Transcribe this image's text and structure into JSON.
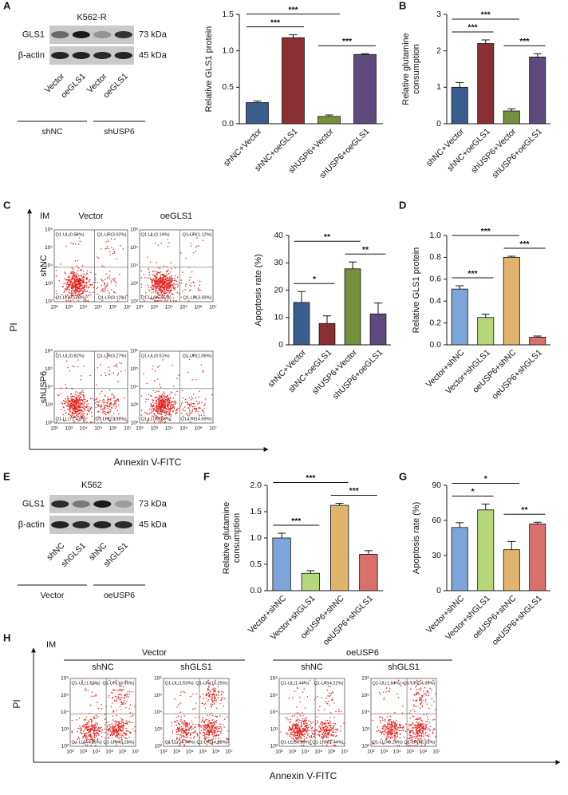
{
  "panels": [
    "A",
    "B",
    "C",
    "D",
    "E",
    "F",
    "G",
    "H"
  ],
  "blots": [
    {
      "title": "K562-R",
      "rows": [
        {
          "protein": "GLS1",
          "size": "73 kDa"
        },
        {
          "protein": "β-actin",
          "size": "45 kDa"
        }
      ],
      "lanes": [
        "Vector",
        "oeGLS1",
        "Vector",
        "oeGLS1"
      ],
      "groups": [
        "shNC",
        "shUSP6"
      ]
    },
    {
      "title": "K562",
      "rows": [
        {
          "protein": "GLS1",
          "size": "73 kDa"
        },
        {
          "protein": "β-actin",
          "size": "45 kDa"
        }
      ],
      "lanes": [
        "shNC",
        "shGLS1",
        "shNC",
        "shGLS1"
      ],
      "groups": [
        "Vector",
        "oeUSP6"
      ]
    }
  ],
  "chart_data": [
    {
      "type": "bar",
      "y_label": "Relative GLS1 protein",
      "categories": [
        "shNC+Vector",
        "shNC+oeGLS1",
        "shUSP6+Vector",
        "shUSP6+oeGLS1"
      ],
      "values": [
        0.29,
        1.18,
        0.1,
        0.95
      ],
      "errors": [
        0.02,
        0.04,
        0.02,
        0.01
      ],
      "colors": [
        "#3a5d8c",
        "#8c2f33",
        "#76913d",
        "#5e4a7d"
      ],
      "ylim": [
        0,
        1.5
      ],
      "yticks": [
        {
          "value": 0,
          "label": "0.0"
        },
        0.5,
        {
          "value": 1,
          "label": "1.0"
        },
        1.5
      ],
      "significance": [
        {
          "groups": [
            0,
            1
          ],
          "label": "***"
        },
        {
          "groups": [
            2,
            3
          ],
          "label": "***"
        },
        {
          "groups": [
            0,
            2
          ],
          "label": "***"
        }
      ]
    },
    {
      "type": "bar",
      "y_label": [
        "Relative glutamine",
        "consumption"
      ],
      "categories": [
        "shNC+Vector",
        "shNC+oeGLS1",
        "shUSP6+Vector",
        "shUSP6+oeGLS1"
      ],
      "values": [
        1.0,
        2.2,
        0.35,
        1.83
      ],
      "errors": [
        0.13,
        0.1,
        0.06,
        0.09
      ],
      "colors": [
        "#3a5d8c",
        "#8c2f33",
        "#76913d",
        "#5e4a7d"
      ],
      "ylim": [
        0,
        3
      ],
      "yticks": [
        0,
        1,
        2,
        3
      ],
      "significance": [
        {
          "groups": [
            0,
            1
          ],
          "label": "***"
        },
        {
          "groups": [
            2,
            3
          ],
          "label": "***"
        },
        {
          "groups": [
            0,
            2
          ],
          "label": "***"
        }
      ]
    },
    {
      "type": "bar",
      "y_label": "Apoptosis rate (%)",
      "categories": [
        "shNC+Vector",
        "shNC+oeGLS1",
        "shUSP6+Vector",
        "shUSP6+oeGLS1"
      ],
      "values": [
        15.5,
        7.8,
        27.8,
        11.3
      ],
      "errors": [
        4,
        2.8,
        2.5,
        4
      ],
      "colors": [
        "#3a5d8c",
        "#8c2f33",
        "#76913d",
        "#5e4a7d"
      ],
      "ylim": [
        0,
        40
      ],
      "yticks": [
        0,
        10,
        20,
        30,
        40
      ],
      "significance": [
        {
          "groups": [
            0,
            1
          ],
          "label": "*"
        },
        {
          "groups": [
            2,
            3
          ],
          "label": "**"
        },
        {
          "groups": [
            0,
            2
          ],
          "label": "**"
        }
      ]
    },
    {
      "type": "bar",
      "y_label": "Relative GLS1 protein",
      "categories": [
        "Vector+shNC",
        "Vector+shGLS1",
        "oeUSP6+shNC",
        "oeUSP6+shGLS1"
      ],
      "values": [
        0.51,
        0.25,
        0.8,
        0.07
      ],
      "errors": [
        0.03,
        0.03,
        0.01,
        0.01
      ],
      "colors": [
        "#7ea5d9",
        "#b6d67a",
        "#e0b46c",
        "#d9706c"
      ],
      "ylim": [
        0,
        1
      ],
      "yticks": [
        {
          "value": 0,
          "label": "0.0"
        },
        0.2,
        0.4,
        0.6,
        0.8,
        {
          "value": 1,
          "label": "1.0"
        }
      ],
      "significance": [
        {
          "groups": [
            0,
            1
          ],
          "label": "***"
        },
        {
          "groups": [
            2,
            3
          ],
          "label": "***"
        },
        {
          "groups": [
            0,
            2
          ],
          "label": "***"
        }
      ]
    },
    {
      "type": "bar",
      "y_label": [
        "Relative glutamine",
        "consumption"
      ],
      "categories": [
        "Vector+shNC",
        "Vector+shGLS1",
        "oeUSP6+shNC",
        "oeUSP6+shGLS1"
      ],
      "values": [
        1.0,
        0.33,
        1.62,
        0.69
      ],
      "errors": [
        0.09,
        0.05,
        0.04,
        0.07
      ],
      "colors": [
        "#7ea5d9",
        "#b6d67a",
        "#e0b46c",
        "#d9706c"
      ],
      "ylim": [
        0,
        2
      ],
      "yticks": [
        {
          "value": 0,
          "label": "0.0"
        },
        0.5,
        {
          "value": 1,
          "label": "1.0"
        },
        1.5,
        {
          "value": 2,
          "label": "2.0"
        }
      ],
      "significance": [
        {
          "groups": [
            0,
            1
          ],
          "label": "***"
        },
        {
          "groups": [
            2,
            3
          ],
          "label": "***"
        },
        {
          "groups": [
            0,
            2
          ],
          "label": "***"
        }
      ]
    },
    {
      "type": "bar",
      "y_label": "Apoptosis rate (%)",
      "categories": [
        "Vector+shNC",
        "Vector+shGLS1",
        "oeUSP6+shNC",
        "oeUSP6+shGLS1"
      ],
      "values": [
        54,
        69,
        35,
        57
      ],
      "errors": [
        4,
        5,
        7,
        1.5
      ],
      "colors": [
        "#7ea5d9",
        "#b6d67a",
        "#e0b46c",
        "#d9706c"
      ],
      "ylim": [
        0,
        90
      ],
      "yticks": [
        0,
        30,
        60,
        90
      ],
      "significance": [
        {
          "groups": [
            0,
            1
          ],
          "label": "*"
        },
        {
          "groups": [
            2,
            3
          ],
          "label": "**"
        },
        {
          "groups": [
            0,
            2
          ],
          "label": "*"
        }
      ]
    }
  ],
  "flow": [
    {
      "corner": "IM",
      "columns": [
        "Vector",
        "oeGLS1"
      ],
      "rows": [
        "shNC",
        "shUSP6"
      ],
      "y_label": "PI",
      "x_label": "Annexin V-FITC",
      "x_ticks": [
        "10²",
        "10³",
        "10⁴",
        "10⁵",
        "10⁶",
        "10⁷"
      ],
      "y_ticks": [
        "10²",
        "10³",
        "10⁴",
        "10⁵",
        "10⁶"
      ],
      "plots": [
        [
          "Q1-UL(0.58%)",
          "Q1-UR(3.02%)",
          "Q1-LL(87.28%)",
          "Q1-LR(9.12%)"
        ],
        [
          "Q1-UL(0.14%)",
          "Q1-UR(1.12%)",
          "Q1-LL(95.05%)",
          "Q1-LR(3.69%)"
        ],
        [
          "Q1-UL(0.82%)",
          "Q1-UR(3.77%)",
          "Q1-LL(71.43%)",
          "Q1-LR(23.98%)"
        ],
        [
          "Q1-UL(0.51%)",
          "Q1-UR(1.06%)",
          "Q1-LL(83.83%)",
          "Q1-LR(14.59%)"
        ]
      ]
    },
    {
      "corner": "IM",
      "groups": [
        "Vector",
        "oeUSP6"
      ],
      "columns": [
        "shNC",
        "shGLS1",
        "shNC",
        "shGLS1"
      ],
      "y_label": "PI",
      "x_label": "Annexin V-FITC",
      "x_ticks": [
        "10²",
        "10³",
        "10⁴",
        "10⁵",
        "10⁶",
        "10⁷"
      ],
      "y_ticks": [
        "10²",
        "10³",
        "10⁴",
        "10⁵",
        "10⁶"
      ],
      "plots": [
        [
          "Q1-UL(1.65%)",
          "Q1-UR(13.95%)",
          "Q1-LL(44.25%)",
          "Q1-LR(40.15%)"
        ],
        [
          "Q1-UL(1.03%)",
          "Q1-UR(19.25%)",
          "Q1-LL(34.74%)",
          "Q1-LR(44.98%)"
        ],
        [
          "Q1-UL(1.44%)",
          "Q1-UR(4.22%)",
          "Q1-LL(56.89%)",
          "Q1-LR(37.44%)"
        ],
        [
          "Q1-UL(1.84%)",
          "Q1-UR(14.93%)",
          "Q1-LL(40.29%)",
          "Q1-LR(42.93%)"
        ]
      ]
    }
  ]
}
